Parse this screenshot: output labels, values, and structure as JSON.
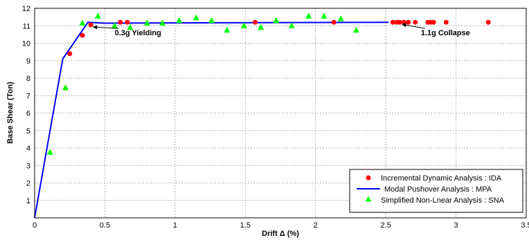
{
  "chart_data": {
    "type": "scatter",
    "xlabel": "Drift Δ (%)",
    "ylabel": "Base Shear (Ton)",
    "xlim": [
      0,
      3.5
    ],
    "ylim": [
      0,
      12
    ],
    "xticks": [
      "0",
      "0.5",
      "1",
      "1.5",
      "2",
      "2.5",
      "3",
      "3.5"
    ],
    "yticks": [
      "1",
      "2",
      "3",
      "4",
      "5",
      "6",
      "7",
      "8",
      "9",
      "10",
      "11",
      "12"
    ],
    "grid": true,
    "legend_position": "bottom-right",
    "series": [
      {
        "name": "Incremental Dynamic Analysis : IDA",
        "kind": "scatter",
        "marker": "circle",
        "color": "#ff0000",
        "points": [
          [
            0.25,
            9.4
          ],
          [
            0.34,
            10.45
          ],
          [
            0.4,
            11.05
          ],
          [
            0.61,
            11.2
          ],
          [
            0.66,
            11.2
          ],
          [
            1.57,
            11.2
          ],
          [
            2.13,
            11.2
          ],
          [
            2.55,
            11.2
          ],
          [
            2.58,
            11.2
          ],
          [
            2.6,
            11.2
          ],
          [
            2.63,
            11.2
          ],
          [
            2.66,
            11.2
          ],
          [
            2.71,
            11.2
          ],
          [
            2.8,
            11.2
          ],
          [
            2.82,
            11.2
          ],
          [
            2.84,
            11.2
          ],
          [
            2.93,
            11.2
          ],
          [
            3.23,
            11.2
          ]
        ]
      },
      {
        "name": "Modal Pushover Analysis : MPA",
        "kind": "line",
        "color": "#0000ff",
        "points": [
          [
            0,
            0
          ],
          [
            0.2,
            9.1
          ],
          [
            0.38,
            11.2
          ],
          [
            0.5,
            11.15
          ],
          [
            2.52,
            11.2
          ]
        ]
      },
      {
        "name": "Simplified Non-Lnear Analysis : SNA",
        "kind": "scatter",
        "marker": "triangle",
        "color": "#00ff00",
        "points": [
          [
            0.11,
            3.75
          ],
          [
            0.22,
            7.45
          ],
          [
            0.34,
            11.15
          ],
          [
            0.45,
            11.55
          ],
          [
            0.57,
            11.0
          ],
          [
            0.68,
            10.9
          ],
          [
            0.8,
            11.15
          ],
          [
            0.91,
            11.15
          ],
          [
            1.03,
            11.3
          ],
          [
            1.15,
            11.45
          ],
          [
            1.26,
            11.3
          ],
          [
            1.37,
            10.75
          ],
          [
            1.49,
            11.0
          ],
          [
            1.61,
            10.9
          ],
          [
            1.72,
            11.3
          ],
          [
            1.83,
            11.0
          ],
          [
            1.95,
            11.55
          ],
          [
            2.06,
            11.55
          ],
          [
            2.18,
            11.4
          ],
          [
            2.29,
            10.75
          ]
        ]
      }
    ],
    "annotations": [
      {
        "text": "0.3g Yielding",
        "target": [
          0.4,
          11.05
        ],
        "label_at": [
          0.57,
          10.45
        ]
      },
      {
        "text": "1.1g Collapse",
        "target": [
          2.6,
          11.2
        ],
        "label_at": [
          2.75,
          10.45
        ]
      }
    ]
  }
}
